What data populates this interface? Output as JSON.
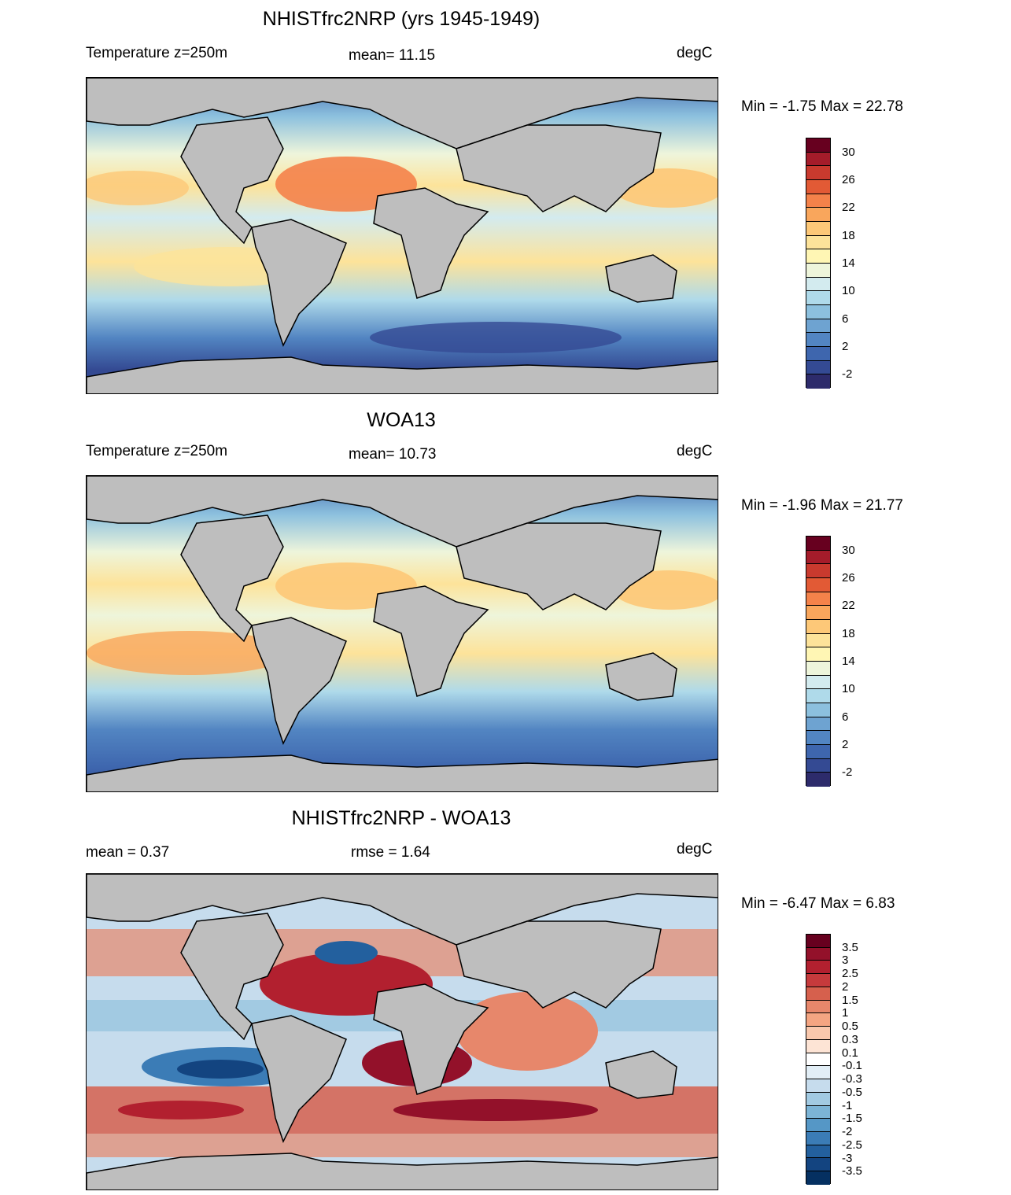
{
  "panels": [
    {
      "title": "NHISTfrc2NRP (yrs 1945-1949)",
      "left_label": "Temperature z=250m",
      "center_label": "mean=  11.15",
      "units": "degC",
      "minmax": "Min =  -1.75 Max =  22.78",
      "colorbar_labels": [
        "30",
        "26",
        "22",
        "18",
        "14",
        "10",
        "6",
        "2",
        "-2"
      ],
      "colorbar_colors": [
        "#67001f",
        "#a51c2a",
        "#c93a2e",
        "#e25a35",
        "#f4824a",
        "#f9a65c",
        "#fdc878",
        "#fde39a",
        "#fff6b4",
        "#eef5db",
        "#d3ebef",
        "#afdaea",
        "#8cc0de",
        "#6ea3d1",
        "#5285c2",
        "#3e66ae",
        "#344a93",
        "#2d2b6b"
      ]
    },
    {
      "title": "WOA13",
      "left_label": "Temperature z=250m",
      "center_label": "mean=  10.73",
      "units": "degC",
      "minmax": "Min =  -1.96 Max =  21.77",
      "colorbar_labels": [
        "30",
        "26",
        "22",
        "18",
        "14",
        "10",
        "6",
        "2",
        "-2"
      ],
      "colorbar_colors": [
        "#67001f",
        "#a51c2a",
        "#c93a2e",
        "#e25a35",
        "#f4824a",
        "#f9a65c",
        "#fdc878",
        "#fde39a",
        "#fff6b4",
        "#eef5db",
        "#d3ebef",
        "#afdaea",
        "#8cc0de",
        "#6ea3d1",
        "#5285c2",
        "#3e66ae",
        "#344a93",
        "#2d2b6b"
      ]
    },
    {
      "title": "NHISTfrc2NRP - WOA13",
      "left_label": "mean =   0.37",
      "center_label": "rmse =   1.64",
      "units": "degC",
      "minmax": "Min =  -6.47 Max =   6.83",
      "colorbar_labels": [
        "3.5",
        "3",
        "2.5",
        "2",
        "1.5",
        "1",
        "0.5",
        "0.3",
        "0.1",
        "-0.1",
        "-0.3",
        "-0.5",
        "-1",
        "-1.5",
        "-2",
        "-2.5",
        "-3",
        "-3.5"
      ],
      "colorbar_colors": [
        "#67001f",
        "#93112a",
        "#b2202f",
        "#c63a3c",
        "#d6604d",
        "#e7876b",
        "#f4a582",
        "#f9c8ad",
        "#fde4d5",
        "#ffffff",
        "#e2eef6",
        "#c6dced",
        "#a2cae2",
        "#7cb4d6",
        "#5597c6",
        "#3b7cb6",
        "#23609e",
        "#134480",
        "#053061"
      ]
    }
  ]
}
